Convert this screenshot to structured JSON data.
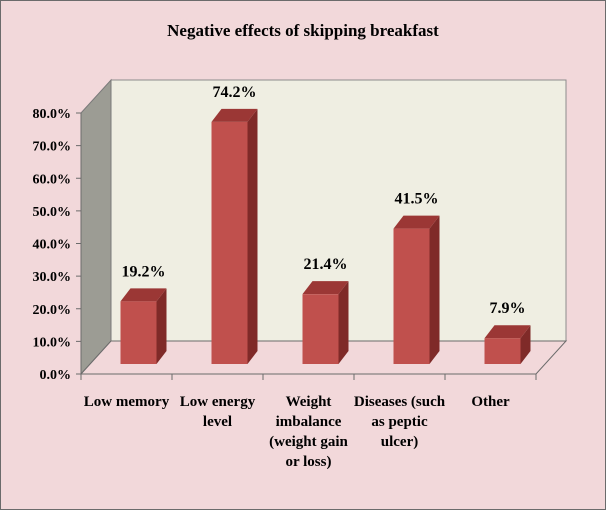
{
  "chart_data": {
    "type": "bar",
    "title": "Negative effects of skipping breakfast",
    "categories": [
      "Low memory",
      "Low energy level",
      "Weight imbalance (weight gain or loss)",
      "Diseases (such as peptic ulcer)",
      "Other"
    ],
    "values": [
      19.2,
      74.2,
      21.4,
      41.5,
      7.9
    ],
    "data_labels": [
      "19.2%",
      "74.2%",
      "21.4%",
      "41.5%",
      "7.9%"
    ],
    "y_ticks": [
      "0.0%",
      "10.0%",
      "20.0%",
      "30.0%",
      "40.0%",
      "50.0%",
      "60.0%",
      "70.0%",
      "80.0%"
    ],
    "ylim": [
      0,
      80
    ],
    "xlabel": "",
    "ylabel": "",
    "grid": false,
    "legend": "none",
    "style": "3d-column"
  },
  "colors": {
    "background": "#f2d8da",
    "back_wall": "#efeee2",
    "side_wall": "#9c9c94",
    "floor": "#f2d8da",
    "bar_front": "#c0504d",
    "bar_side": "#7f2a28",
    "bar_top": "#9b3735"
  }
}
